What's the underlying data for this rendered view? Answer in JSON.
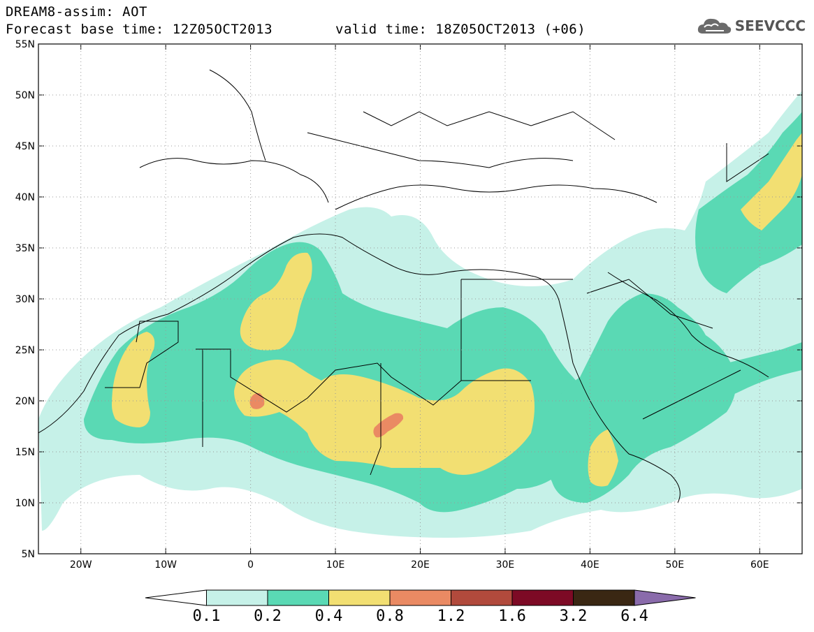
{
  "header": {
    "title": "DREAM8-assim: AOT",
    "base_time": "Forecast base time: 12Z05OCT2013",
    "valid_time": "valid time: 18Z05OCT2013 (+06)",
    "logo_text": "SEEVCCC"
  },
  "axes": {
    "lat_labels": [
      "55N",
      "50N",
      "45N",
      "40N",
      "35N",
      "30N",
      "25N",
      "20N",
      "15N",
      "10N",
      "5N"
    ],
    "lat_values": [
      55,
      50,
      45,
      40,
      35,
      30,
      25,
      20,
      15,
      10,
      5
    ],
    "lon_labels": [
      "20W",
      "10W",
      "0",
      "10E",
      "20E",
      "30E",
      "40E",
      "50E",
      "60E"
    ],
    "lon_values": [
      -20,
      -10,
      0,
      10,
      20,
      30,
      40,
      50,
      60
    ],
    "lon_range": [
      -25,
      65
    ],
    "lat_range": [
      5,
      55
    ]
  },
  "colorbar": {
    "levels": [
      "0.1",
      "0.2",
      "0.4",
      "0.8",
      "1.2",
      "1.6",
      "3.2",
      "6.4"
    ],
    "colors": [
      "#c6f1e8",
      "#5ad9b4",
      "#f2df72",
      "#ea8a63",
      "#b14a3c",
      "#7d0a25",
      "#3a2713",
      "#8a6bab"
    ]
  }
}
